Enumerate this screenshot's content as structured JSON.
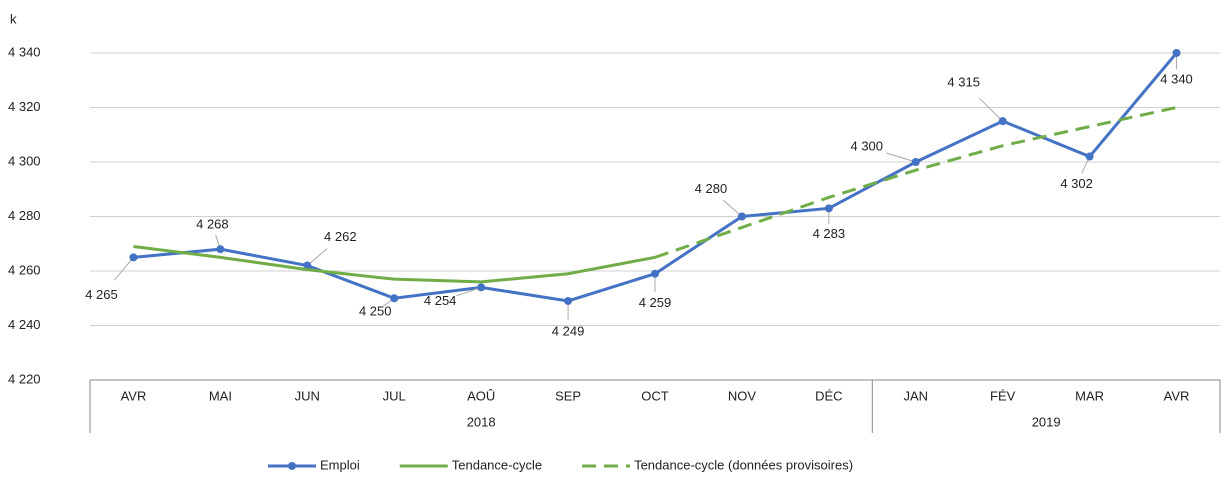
{
  "chart_data": {
    "type": "line",
    "y_unit": "k",
    "categories": [
      "AVR",
      "MAI",
      "JUN",
      "JUL",
      "AOÛ",
      "SEP",
      "OCT",
      "NOV",
      "DÉC",
      "JAN",
      "FÉV",
      "MAR",
      "AVR"
    ],
    "groups": [
      {
        "label": "2018",
        "count": 9
      },
      {
        "label": "2019",
        "count": 4
      }
    ],
    "series": [
      {
        "name": "Emploi",
        "color": "#4472c4",
        "style": "solid",
        "markers": true,
        "values": [
          4265,
          4268,
          4262,
          4250,
          4254,
          4249,
          4259,
          4280,
          4283,
          4300,
          4315,
          4302,
          4340
        ],
        "value_labels": [
          "4 265",
          "4 268",
          "4 262",
          "4 250",
          "4 254",
          "4 249",
          "4 259",
          "4 280",
          "4 283",
          "4 300",
          "4 315",
          "4 302",
          "4 340"
        ]
      },
      {
        "name": "Tendance-cycle",
        "color": "#70ad47",
        "style": "solid",
        "markers": false,
        "values": [
          4269,
          4265,
          4260.5,
          4257,
          4256,
          4259,
          4265,
          null,
          null,
          null,
          null,
          null,
          null
        ]
      },
      {
        "name": "Tendance-cycle (données provisoires)",
        "color": "#70ad47",
        "style": "dashed",
        "markers": false,
        "values": [
          null,
          null,
          null,
          null,
          null,
          null,
          4265,
          4276,
          4287,
          4297,
          4306,
          4313,
          4320
        ]
      }
    ],
    "ylim": [
      4220,
      4340
    ],
    "yticks": [
      {
        "value": 4220,
        "label": "4 220"
      },
      {
        "value": 4240,
        "label": "4 240"
      },
      {
        "value": 4260,
        "label": "4 260"
      },
      {
        "value": 4280,
        "label": "4 280"
      },
      {
        "value": 4300,
        "label": "4 300"
      },
      {
        "value": 4320,
        "label": "4 320"
      },
      {
        "value": 4340,
        "label": "4 340"
      }
    ],
    "grid": true,
    "legend": "bottom"
  }
}
